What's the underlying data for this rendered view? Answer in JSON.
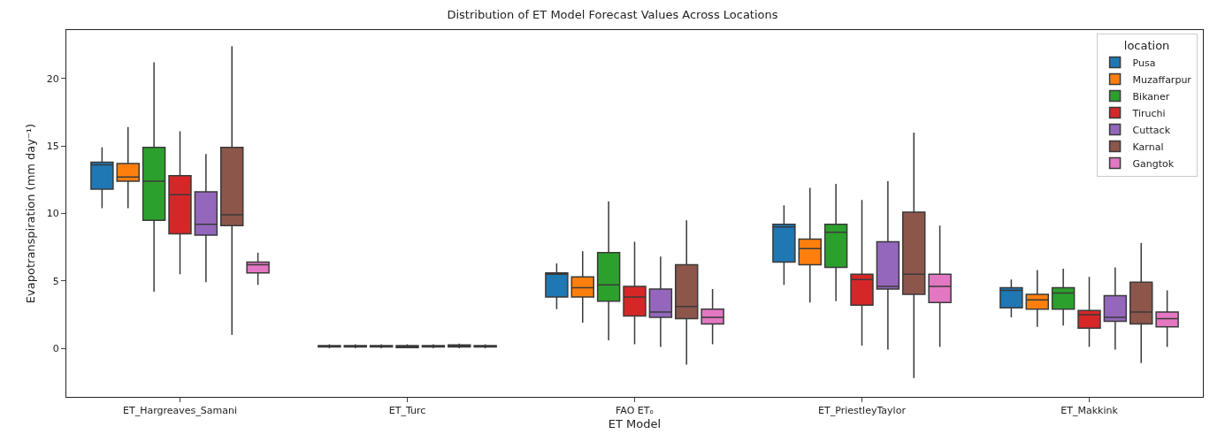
{
  "chart_data": {
    "type": "box",
    "title": "Distribution of ET Model Forecast Values Across Locations",
    "xlabel": "ET Model",
    "ylabel": "Evapotranspiration (mm day⁻¹)",
    "legend_title": "location",
    "legend": "top right",
    "grid": false,
    "categories": [
      "ET_Hargreaves_Samani",
      "ET_Turc",
      "FAO ETₒ",
      "ET_PriestleyTaylor",
      "ET_Makkink"
    ],
    "ylim": [
      -3.6,
      23.6
    ],
    "yticks": [
      0,
      5,
      10,
      15,
      20
    ],
    "series": [
      {
        "name": "Pusa",
        "color": "#1f77b4",
        "boxes": [
          {
            "low": 10.4,
            "q1": 11.8,
            "median": 13.6,
            "q3": 13.8,
            "high": 14.9
          },
          {
            "low": 0.0,
            "q1": 0.1,
            "median": 0.15,
            "q3": 0.2,
            "high": 0.3
          },
          {
            "low": 2.9,
            "q1": 3.8,
            "median": 5.5,
            "q3": 5.6,
            "high": 6.3
          },
          {
            "low": 4.7,
            "q1": 6.4,
            "median": 9.0,
            "q3": 9.2,
            "high": 10.6
          },
          {
            "low": 2.3,
            "q1": 3.0,
            "median": 4.3,
            "q3": 4.5,
            "high": 5.1
          }
        ]
      },
      {
        "name": "Muzaffarpur",
        "color": "#ff7f0e",
        "boxes": [
          {
            "low": 10.4,
            "q1": 12.4,
            "median": 12.7,
            "q3": 13.7,
            "high": 16.4
          },
          {
            "low": 0.0,
            "q1": 0.1,
            "median": 0.15,
            "q3": 0.2,
            "high": 0.3
          },
          {
            "low": 1.9,
            "q1": 3.8,
            "median": 4.5,
            "q3": 5.3,
            "high": 7.2
          },
          {
            "low": 3.4,
            "q1": 6.2,
            "median": 7.4,
            "q3": 8.1,
            "high": 11.9
          },
          {
            "low": 1.6,
            "q1": 2.9,
            "median": 3.6,
            "q3": 4.0,
            "high": 5.8
          }
        ]
      },
      {
        "name": "Bikaner",
        "color": "#2ca02c",
        "boxes": [
          {
            "low": 4.2,
            "q1": 9.5,
            "median": 12.4,
            "q3": 14.9,
            "high": 21.2
          },
          {
            "low": 0.0,
            "q1": 0.1,
            "median": 0.15,
            "q3": 0.2,
            "high": 0.3
          },
          {
            "low": 0.6,
            "q1": 3.5,
            "median": 4.7,
            "q3": 7.1,
            "high": 10.9
          },
          {
            "low": 3.5,
            "q1": 6.0,
            "median": 8.6,
            "q3": 9.2,
            "high": 12.2
          },
          {
            "low": 1.7,
            "q1": 2.9,
            "median": 4.1,
            "q3": 4.5,
            "high": 5.9
          }
        ]
      },
      {
        "name": "Tiruchi",
        "color": "#d62728",
        "boxes": [
          {
            "low": 5.5,
            "q1": 8.5,
            "median": 11.4,
            "q3": 12.8,
            "high": 16.1
          },
          {
            "low": 0.0,
            "q1": 0.05,
            "median": 0.1,
            "q3": 0.2,
            "high": 0.3
          },
          {
            "low": 0.3,
            "q1": 2.4,
            "median": 3.8,
            "q3": 4.6,
            "high": 7.9
          },
          {
            "low": 0.2,
            "q1": 3.2,
            "median": 5.1,
            "q3": 5.5,
            "high": 11.0
          },
          {
            "low": 0.1,
            "q1": 1.5,
            "median": 2.5,
            "q3": 2.8,
            "high": 5.3
          }
        ]
      },
      {
        "name": "Cuttack",
        "color": "#9467bd",
        "boxes": [
          {
            "low": 4.9,
            "q1": 8.4,
            "median": 9.2,
            "q3": 11.6,
            "high": 14.4
          },
          {
            "low": 0.0,
            "q1": 0.1,
            "median": 0.15,
            "q3": 0.2,
            "high": 0.3
          },
          {
            "low": 0.1,
            "q1": 2.3,
            "median": 2.7,
            "q3": 4.4,
            "high": 6.8
          },
          {
            "low": -0.1,
            "q1": 4.4,
            "median": 4.6,
            "q3": 7.9,
            "high": 12.4
          },
          {
            "low": -0.1,
            "q1": 2.0,
            "median": 2.3,
            "q3": 3.9,
            "high": 6.0
          }
        ]
      },
      {
        "name": "Karnal",
        "color": "#8c564b",
        "boxes": [
          {
            "low": 1.0,
            "q1": 9.1,
            "median": 9.9,
            "q3": 14.9,
            "high": 22.4
          },
          {
            "low": 0.0,
            "q1": 0.1,
            "median": 0.2,
            "q3": 0.25,
            "high": 0.35
          },
          {
            "low": -1.2,
            "q1": 2.2,
            "median": 3.1,
            "q3": 6.2,
            "high": 9.5
          },
          {
            "low": -2.2,
            "q1": 4.0,
            "median": 5.5,
            "q3": 10.1,
            "high": 16.0
          },
          {
            "low": -1.1,
            "q1": 1.8,
            "median": 2.7,
            "q3": 4.9,
            "high": 7.8
          }
        ]
      },
      {
        "name": "Gangtok",
        "color": "#e377c2",
        "boxes": [
          {
            "low": 4.7,
            "q1": 5.6,
            "median": 6.2,
            "q3": 6.4,
            "high": 7.1
          },
          {
            "low": 0.0,
            "q1": 0.1,
            "median": 0.15,
            "q3": 0.2,
            "high": 0.3
          },
          {
            "low": 0.3,
            "q1": 1.8,
            "median": 2.3,
            "q3": 2.9,
            "high": 4.4
          },
          {
            "low": 0.1,
            "q1": 3.4,
            "median": 4.6,
            "q3": 5.5,
            "high": 9.1
          },
          {
            "low": 0.1,
            "q1": 1.6,
            "median": 2.2,
            "q3": 2.7,
            "high": 4.3
          }
        ]
      }
    ]
  }
}
